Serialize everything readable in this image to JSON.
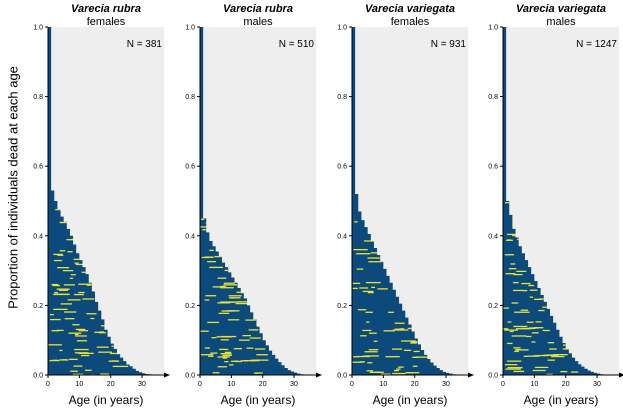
{
  "ylabel": "Proportion of individuals dead at each age",
  "chart_data": [
    {
      "type": "area",
      "title": "Varecia rubra",
      "subtitle": "females",
      "annotation": "N = 381",
      "xlabel": "Age (in years)",
      "xlim": [
        0,
        37
      ],
      "ylim": [
        0,
        1.0
      ],
      "xticks": [
        "0",
        "10",
        "20",
        "30"
      ],
      "yticks": [
        "0.0",
        "0.2",
        "0.4",
        "0.6",
        "0.8",
        "1.0"
      ],
      "series": [
        {
          "x": [
            0,
            1,
            2,
            3,
            4,
            5,
            6,
            7,
            8,
            9,
            10,
            11,
            12,
            13,
            14,
            15,
            16,
            17,
            18,
            19,
            20,
            21,
            22,
            23,
            24,
            25,
            26,
            27,
            28,
            29,
            30,
            31,
            32,
            33,
            34,
            35
          ],
          "values": [
            1.0,
            0.53,
            0.5,
            0.475,
            0.455,
            0.44,
            0.42,
            0.4,
            0.375,
            0.35,
            0.33,
            0.31,
            0.29,
            0.265,
            0.24,
            0.21,
            0.185,
            0.16,
            0.13,
            0.11,
            0.09,
            0.075,
            0.06,
            0.05,
            0.04,
            0.03,
            0.025,
            0.018,
            0.012,
            0.008,
            0.005,
            0.003,
            0.002,
            0.001,
            0.001,
            0.0
          ]
        }
      ],
      "colors": {
        "fill": "#0b4a7a",
        "highlight": "#e8e23a",
        "background": "#eeeeee"
      }
    },
    {
      "type": "area",
      "title": "Varecia rubra",
      "subtitle": "males",
      "annotation": "N = 510",
      "xlabel": "Age (in years)",
      "xlim": [
        0,
        37
      ],
      "ylim": [
        0,
        1.0
      ],
      "xticks": [
        "0",
        "10",
        "20",
        "30"
      ],
      "yticks": [
        "0.0",
        "0.2",
        "0.4",
        "0.6",
        "0.8",
        "1.0"
      ],
      "series": [
        {
          "x": [
            0,
            1,
            2,
            3,
            4,
            5,
            6,
            7,
            8,
            9,
            10,
            11,
            12,
            13,
            14,
            15,
            16,
            17,
            18,
            19,
            20,
            21,
            22,
            23,
            24,
            25,
            26,
            27,
            28,
            29,
            30,
            31,
            32,
            33,
            34,
            35
          ],
          "values": [
            1.0,
            0.45,
            0.41,
            0.385,
            0.37,
            0.355,
            0.34,
            0.325,
            0.31,
            0.295,
            0.28,
            0.265,
            0.25,
            0.235,
            0.22,
            0.2,
            0.18,
            0.16,
            0.14,
            0.12,
            0.1,
            0.085,
            0.07,
            0.058,
            0.047,
            0.037,
            0.028,
            0.02,
            0.014,
            0.01,
            0.007,
            0.004,
            0.002,
            0.001,
            0.001,
            0.0
          ]
        }
      ],
      "colors": {
        "fill": "#0b4a7a",
        "highlight": "#e8e23a",
        "background": "#eeeeee"
      }
    },
    {
      "type": "area",
      "title": "Varecia variegata",
      "subtitle": "females",
      "annotation": "N = 931",
      "xlabel": "Age (in years)",
      "xlim": [
        0,
        37
      ],
      "ylim": [
        0,
        1.0
      ],
      "xticks": [
        "0",
        "10",
        "20",
        "30"
      ],
      "yticks": [
        "0.0",
        "0.2",
        "0.4",
        "0.6",
        "0.8",
        "1.0"
      ],
      "series": [
        {
          "x": [
            0,
            1,
            2,
            3,
            4,
            5,
            6,
            7,
            8,
            9,
            10,
            11,
            12,
            13,
            14,
            15,
            16,
            17,
            18,
            19,
            20,
            21,
            22,
            23,
            24,
            25,
            26,
            27,
            28,
            29,
            30,
            31,
            32,
            33,
            34,
            35
          ],
          "values": [
            1.0,
            0.52,
            0.47,
            0.445,
            0.425,
            0.405,
            0.385,
            0.365,
            0.345,
            0.325,
            0.305,
            0.285,
            0.265,
            0.245,
            0.225,
            0.205,
            0.185,
            0.165,
            0.145,
            0.125,
            0.105,
            0.088,
            0.072,
            0.058,
            0.046,
            0.036,
            0.027,
            0.02,
            0.014,
            0.009,
            0.006,
            0.004,
            0.002,
            0.001,
            0.001,
            0.0
          ]
        }
      ],
      "colors": {
        "fill": "#0b4a7a",
        "highlight": "#e8e23a",
        "background": "#eeeeee"
      }
    },
    {
      "type": "area",
      "title": "Varecia variegata",
      "subtitle": "males",
      "annotation": "N = 1247",
      "xlabel": "Age (in years)",
      "xlim": [
        0,
        37
      ],
      "ylim": [
        0,
        1.0
      ],
      "xticks": [
        "0",
        "10",
        "20",
        "30"
      ],
      "yticks": [
        "0.0",
        "0.2",
        "0.4",
        "0.6",
        "0.8",
        "1.0"
      ],
      "series": [
        {
          "x": [
            0,
            1,
            2,
            3,
            4,
            5,
            6,
            7,
            8,
            9,
            10,
            11,
            12,
            13,
            14,
            15,
            16,
            17,
            18,
            19,
            20,
            21,
            22,
            23,
            24,
            25,
            26,
            27,
            28,
            29,
            30,
            31,
            32,
            33,
            34,
            35
          ],
          "values": [
            1.0,
            0.5,
            0.46,
            0.42,
            0.395,
            0.37,
            0.35,
            0.33,
            0.31,
            0.29,
            0.27,
            0.25,
            0.23,
            0.21,
            0.19,
            0.17,
            0.15,
            0.13,
            0.11,
            0.092,
            0.076,
            0.062,
            0.05,
            0.04,
            0.031,
            0.024,
            0.018,
            0.013,
            0.009,
            0.006,
            0.004,
            0.002,
            0.001,
            0.001,
            0.0,
            0.0
          ]
        }
      ],
      "colors": {
        "fill": "#0b4a7a",
        "highlight": "#e8e23a",
        "background": "#eeeeee"
      }
    }
  ]
}
